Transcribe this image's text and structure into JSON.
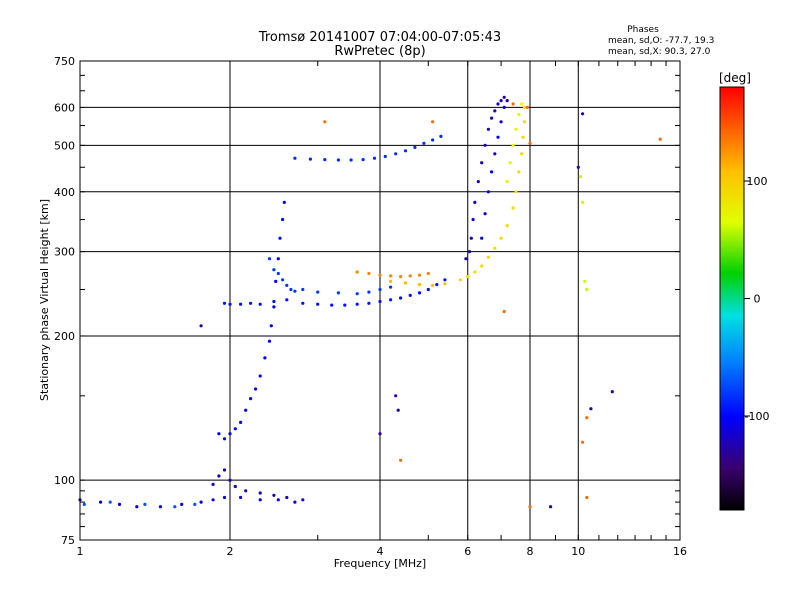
{
  "chart_data": {
    "type": "scatter",
    "title": "Tromsø 20141007 07:04:00-07:05:43",
    "subtitle": "RwPretec (8p)",
    "xlabel": "Frequency [MHz]",
    "ylabel": "Stationary phase Virtual Height [km]",
    "x_scale": "log",
    "y_scale": "log",
    "xlim": [
      1,
      16
    ],
    "ylim": [
      75,
      750
    ],
    "x_ticks": [
      1,
      2,
      4,
      6,
      8,
      10,
      16
    ],
    "x_tick_labels": [
      "1",
      "2",
      "4",
      "6",
      "8",
      "10",
      "16"
    ],
    "y_ticks": [
      75,
      100,
      200,
      300,
      400,
      500,
      600,
      750
    ],
    "y_tick_labels": [
      "75",
      "100",
      "200",
      "300",
      "400",
      "500",
      "600",
      "750"
    ],
    "grid": true,
    "phases": {
      "title": "Phases",
      "line_o": "mean, sd,O: -77.7, 19.3",
      "line_x": "mean, sd,X:  90.3, 27.0"
    },
    "colorbar": {
      "label": "[deg]",
      "range": [
        -180,
        180
      ],
      "ticks": [
        100,
        0,
        -100
      ],
      "tick_labels": [
        "100",
        "0",
        "-100"
      ]
    },
    "series": [
      {
        "phase": -110,
        "points": [
          [
            1.0,
            91
          ],
          [
            1.1,
            90
          ],
          [
            1.2,
            89
          ],
          [
            1.3,
            88
          ],
          [
            1.45,
            88
          ],
          [
            1.6,
            89
          ],
          [
            1.75,
            90
          ],
          [
            1.85,
            91
          ],
          [
            1.95,
            92
          ],
          [
            2.1,
            92
          ],
          [
            2.3,
            91
          ],
          [
            2.5,
            91
          ],
          [
            2.7,
            90
          ]
        ]
      },
      {
        "phase": -70,
        "points": [
          [
            1.02,
            89
          ],
          [
            1.15,
            90
          ],
          [
            1.35,
            89
          ],
          [
            1.55,
            88
          ],
          [
            1.7,
            89
          ]
        ]
      },
      {
        "phase": -120,
        "points": [
          [
            1.85,
            98
          ],
          [
            1.9,
            102
          ],
          [
            1.95,
            105
          ],
          [
            2.0,
            100
          ],
          [
            2.05,
            97
          ],
          [
            2.15,
            95
          ],
          [
            2.3,
            94
          ],
          [
            2.45,
            93
          ],
          [
            2.6,
            92
          ],
          [
            2.8,
            91
          ]
        ]
      },
      {
        "phase": -100,
        "points": [
          [
            1.9,
            125
          ],
          [
            1.95,
            122
          ],
          [
            2.0,
            125
          ],
          [
            2.05,
            128
          ],
          [
            2.1,
            132
          ],
          [
            2.15,
            140
          ],
          [
            2.2,
            148
          ],
          [
            2.25,
            155
          ],
          [
            2.3,
            165
          ],
          [
            2.35,
            180
          ],
          [
            2.4,
            195
          ],
          [
            2.42,
            210
          ],
          [
            2.45,
            230
          ],
          [
            2.47,
            260
          ],
          [
            2.5,
            290
          ],
          [
            2.52,
            320
          ],
          [
            2.55,
            350
          ],
          [
            2.57,
            380
          ]
        ]
      },
      {
        "phase": -95,
        "points": [
          [
            1.95,
            234
          ],
          [
            2.0,
            233
          ],
          [
            2.1,
            233
          ],
          [
            2.2,
            234
          ],
          [
            2.3,
            233
          ],
          [
            2.45,
            236
          ],
          [
            2.6,
            238
          ],
          [
            2.8,
            234
          ],
          [
            3.0,
            233
          ],
          [
            3.2,
            232
          ],
          [
            3.4,
            232
          ],
          [
            3.6,
            233
          ],
          [
            3.8,
            234
          ],
          [
            4.0,
            236
          ],
          [
            4.2,
            238
          ],
          [
            4.4,
            240
          ],
          [
            4.6,
            243
          ],
          [
            4.8,
            246
          ],
          [
            5.0,
            250
          ],
          [
            5.2,
            256
          ],
          [
            5.4,
            262
          ]
        ]
      },
      {
        "phase": -80,
        "points": [
          [
            2.4,
            290
          ],
          [
            2.45,
            275
          ],
          [
            2.5,
            270
          ],
          [
            2.55,
            262
          ],
          [
            2.6,
            255
          ],
          [
            2.65,
            250
          ],
          [
            2.7,
            248
          ],
          [
            2.8,
            250
          ],
          [
            3.0,
            247
          ],
          [
            3.3,
            246
          ],
          [
            3.6,
            245
          ],
          [
            3.8,
            247
          ],
          [
            4.0,
            250
          ],
          [
            4.2,
            253
          ]
        ]
      },
      {
        "phase": -85,
        "points": [
          [
            2.7,
            470
          ],
          [
            2.9,
            468
          ],
          [
            3.1,
            467
          ],
          [
            3.3,
            466
          ],
          [
            3.5,
            466
          ],
          [
            3.7,
            467
          ],
          [
            3.9,
            470
          ],
          [
            4.1,
            474
          ],
          [
            4.3,
            480
          ],
          [
            4.5,
            487
          ],
          [
            4.7,
            495
          ],
          [
            4.9,
            505
          ],
          [
            5.1,
            513
          ],
          [
            5.3,
            522
          ]
        ]
      },
      {
        "phase": 130,
        "points": [
          [
            3.6,
            272
          ],
          [
            3.8,
            270
          ],
          [
            4.0,
            268
          ],
          [
            4.2,
            267
          ],
          [
            4.4,
            266
          ],
          [
            4.6,
            267
          ],
          [
            4.8,
            268
          ],
          [
            5.0,
            270
          ]
        ]
      },
      {
        "phase": 110,
        "points": [
          [
            4.2,
            260
          ],
          [
            4.5,
            258
          ],
          [
            4.8,
            256
          ],
          [
            5.1,
            255
          ],
          [
            5.4,
            257
          ]
        ]
      },
      {
        "phase": -120,
        "points": [
          [
            5.95,
            290
          ],
          [
            6.05,
            300
          ],
          [
            6.1,
            320
          ],
          [
            6.15,
            350
          ],
          [
            6.2,
            380
          ],
          [
            6.3,
            420
          ],
          [
            6.4,
            460
          ],
          [
            6.5,
            500
          ],
          [
            6.6,
            540
          ],
          [
            6.7,
            570
          ],
          [
            6.8,
            590
          ],
          [
            6.9,
            610
          ],
          [
            7.0,
            620
          ],
          [
            7.1,
            630
          ],
          [
            7.2,
            620
          ]
        ]
      },
      {
        "phase": -110,
        "points": [
          [
            6.4,
            320
          ],
          [
            6.5,
            360
          ],
          [
            6.6,
            400
          ],
          [
            6.7,
            440
          ],
          [
            6.8,
            480
          ],
          [
            6.9,
            520
          ],
          [
            7.0,
            560
          ],
          [
            7.1,
            600
          ]
        ]
      },
      {
        "phase": 90,
        "points": [
          [
            5.8,
            262
          ],
          [
            6.0,
            266
          ],
          [
            6.2,
            272
          ],
          [
            6.4,
            280
          ],
          [
            6.6,
            292
          ],
          [
            6.8,
            305
          ],
          [
            7.0,
            320
          ],
          [
            7.2,
            340
          ],
          [
            7.4,
            370
          ],
          [
            7.5,
            400
          ],
          [
            7.6,
            440
          ],
          [
            7.7,
            480
          ],
          [
            7.75,
            520
          ],
          [
            7.8,
            560
          ],
          [
            7.8,
            600
          ]
        ]
      },
      {
        "phase": 70,
        "points": [
          [
            7.2,
            420
          ],
          [
            7.3,
            460
          ],
          [
            7.4,
            500
          ],
          [
            7.5,
            540
          ],
          [
            7.6,
            580
          ],
          [
            7.7,
            610
          ]
        ]
      },
      {
        "phase": -130,
        "points": [
          [
            1.75,
            210
          ],
          [
            4.0,
            125
          ],
          [
            4.3,
            150
          ],
          [
            4.35,
            140
          ],
          [
            8.8,
            88
          ],
          [
            10.6,
            141
          ],
          [
            11.7,
            153
          ],
          [
            10.2,
            582
          ],
          [
            10.0,
            450
          ]
        ]
      },
      {
        "phase": 140,
        "points": [
          [
            3.1,
            560
          ],
          [
            4.4,
            110
          ],
          [
            5.1,
            560
          ],
          [
            7.4,
            610
          ],
          [
            7.9,
            600
          ],
          [
            8.0,
            505
          ],
          [
            10.4,
            92
          ],
          [
            10.2,
            120
          ],
          [
            14.6,
            515
          ],
          [
            8.0,
            88
          ],
          [
            7.1,
            225
          ],
          [
            10.4,
            135
          ]
        ]
      },
      {
        "phase": 60,
        "points": [
          [
            10.1,
            430
          ],
          [
            10.2,
            380
          ],
          [
            10.3,
            260
          ],
          [
            10.4,
            250
          ]
        ]
      }
    ]
  }
}
